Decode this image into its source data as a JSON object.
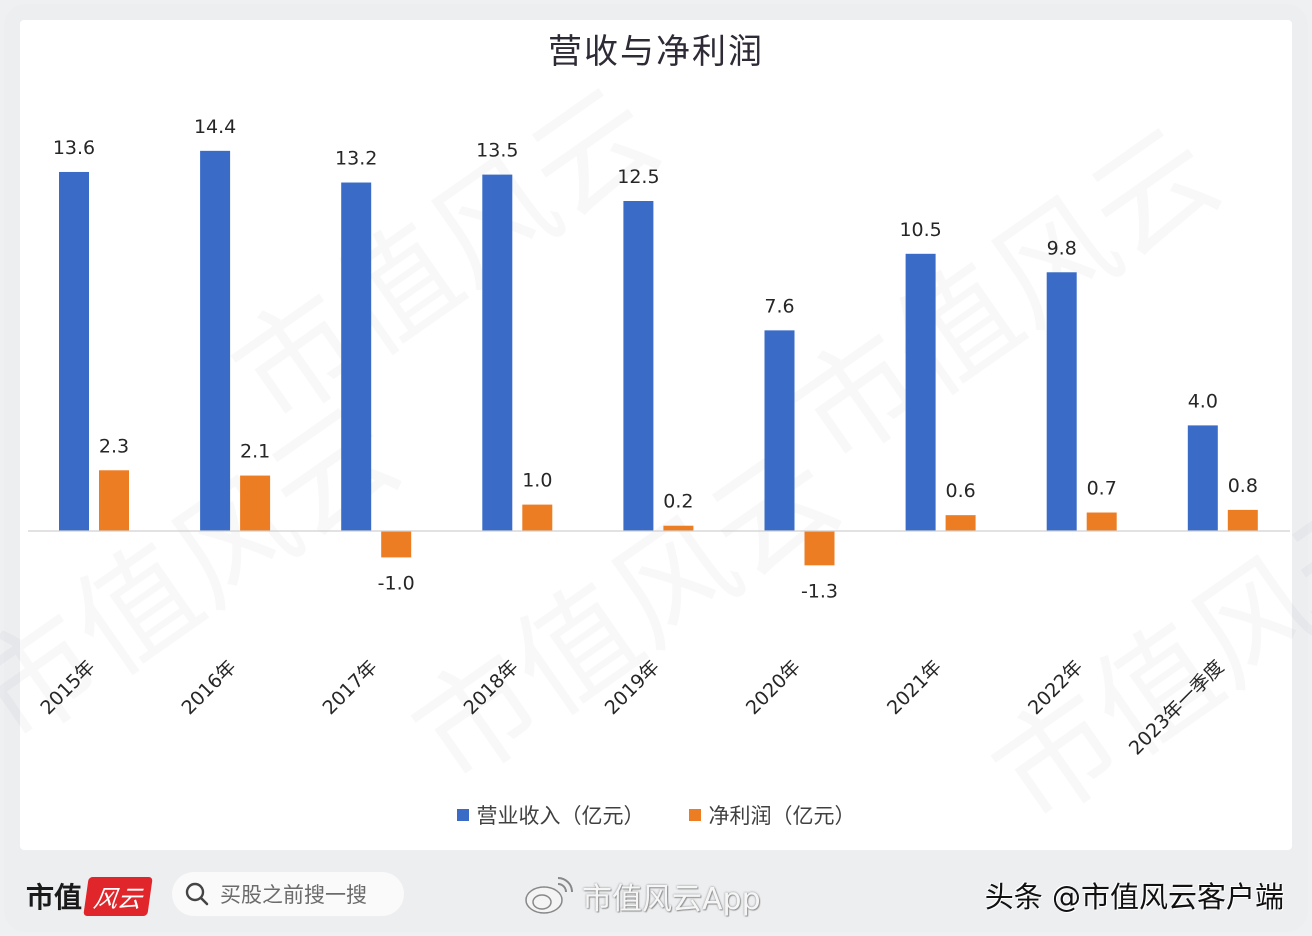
{
  "chart_data": {
    "type": "bar",
    "title": "营收与净利润",
    "categories": [
      "2015年",
      "2016年",
      "2017年",
      "2018年",
      "2019年",
      "2020年",
      "2021年",
      "2022年",
      "2023年一季度"
    ],
    "series": [
      {
        "name": "营业收入（亿元）",
        "color": "#3a6cc7",
        "values": [
          13.6,
          14.4,
          13.2,
          13.5,
          12.5,
          7.6,
          10.5,
          9.8,
          4.0
        ]
      },
      {
        "name": "净利润（亿元）",
        "color": "#ed7d22",
        "values": [
          2.3,
          2.1,
          -1.0,
          1.0,
          0.2,
          -1.3,
          0.6,
          0.7,
          0.8
        ]
      }
    ],
    "data_labels": true,
    "xlabel": "",
    "ylabel": "",
    "ylim": [
      -2.5,
      16
    ],
    "grid": false,
    "legend_position": "bottom-center",
    "x_tick_rotation": -45
  },
  "footer": {
    "brand_name": "市值",
    "brand_badge": "风云",
    "search_placeholder": "买股之前搜一搜",
    "weibo_account": "市值风云App",
    "credit": "头条 @市值风云客户端"
  }
}
